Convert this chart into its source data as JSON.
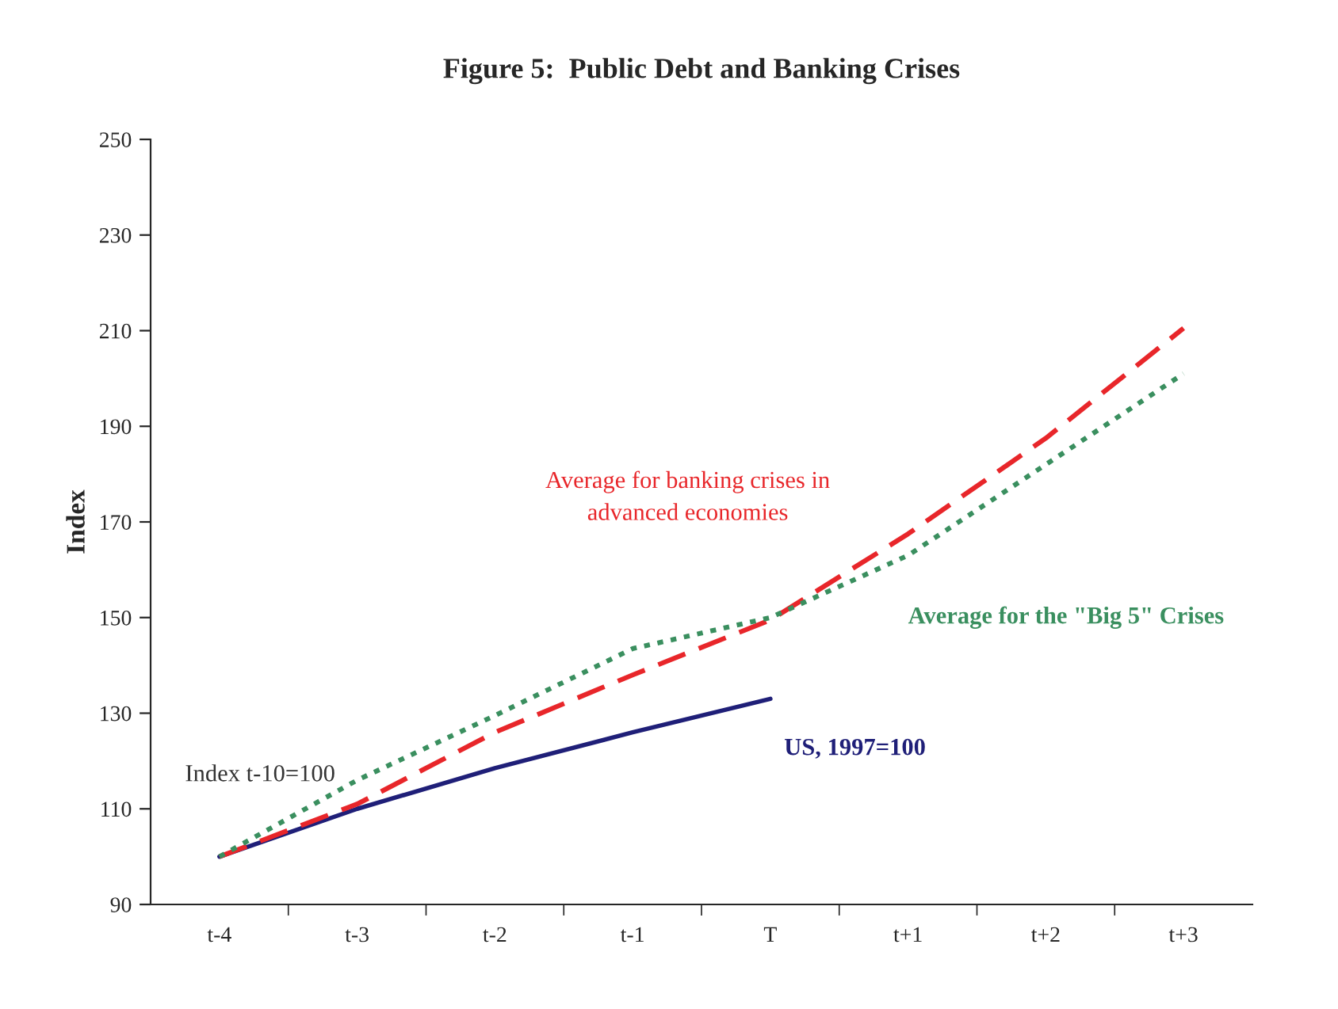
{
  "chart_data": {
    "type": "line",
    "title": "Figure 5:  Public Debt and Banking Crises",
    "ylabel": "Index",
    "categories": [
      "t-4",
      "t-3",
      "t-2",
      "t-1",
      "T",
      "t+1",
      "t+2",
      "t+3"
    ],
    "series": [
      {
        "name": "US, 1997=100",
        "color": "#1f1f78",
        "line_style": "solid",
        "values": [
          100,
          110,
          118.5,
          126,
          133,
          null,
          null,
          null
        ]
      },
      {
        "name": "Average for banking crises in\nadvanced economies",
        "color": "#e8262a",
        "line_style": "dashed",
        "values": [
          100,
          111,
          126,
          138,
          149.5,
          167.5,
          187.5,
          210.5
        ]
      },
      {
        "name": "Average for the \"Big 5\" Crises",
        "color": "#3a8f5f",
        "line_style": "dotted",
        "values": [
          100,
          116,
          129.5,
          143.5,
          150,
          163,
          182,
          201
        ]
      }
    ],
    "annotations": [
      "Index t-10=100"
    ],
    "ylim": [
      90,
      250
    ],
    "yticks": [
      90,
      110,
      130,
      150,
      170,
      190,
      210,
      230,
      250
    ],
    "grid": false,
    "legend": false,
    "marker": "none"
  }
}
